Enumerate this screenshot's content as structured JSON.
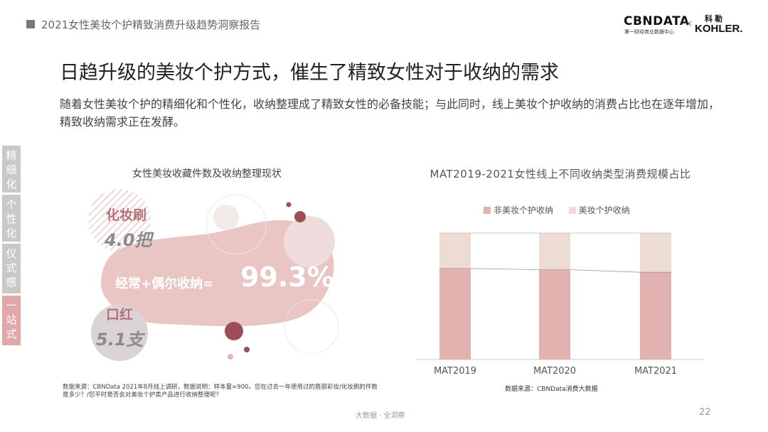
{
  "header": {
    "report_title": "2021女性美妆个护精致消费升级趋势洞察报告"
  },
  "logos": {
    "cbn": "CBNDATA",
    "cbn_sub": "第一财经商业数据中心",
    "times": "×",
    "kohler_cn": "科勒",
    "kohler": "KOHLER."
  },
  "main": {
    "title": "日趋升级的美妆个护方式，催生了精致女性对于收纳的需求",
    "description": "随着女性美妆个护的精细化和个性化，收纳整理成了精致女性的必备技能；与此同时，线上美妆个护收纳的消费占比也在逐年增加，精致收纳需求正在发酵。"
  },
  "side_tabs": [
    {
      "label": "精细化",
      "active": false
    },
    {
      "label": "个性化",
      "active": false
    },
    {
      "label": "仪式感",
      "active": false
    },
    {
      "label": "一站式",
      "active": true
    }
  ],
  "left_panel": {
    "title": "女性美妆收藏件数及收纳整理现状",
    "brush_label": "化妆刷",
    "brush_value": "4.0把",
    "lipstick_label": "口红",
    "lipstick_value": "5.1支",
    "storage_label": "经常+偶尔收纳=",
    "storage_value": "99.3%",
    "source": "数据来源：CBNData 2021年8月线上调研，数据说明：样本量=900。您在过去一年使用过的唇部彩妆/化妆刷的件数是多少？/您平时是否会对美妆个护类产品进行收纳整理呢？"
  },
  "chart_data": {
    "type": "bar",
    "stacked": true,
    "title": "MAT2019-2021女性线上不同收纳类型消费规模占比",
    "categories": [
      "MAT2019",
      "MAT2020",
      "MAT2021"
    ],
    "series": [
      {
        "name": "非美妆个护收纳",
        "values": [
          72,
          71,
          69
        ],
        "color": "#e2b2b0"
      },
      {
        "name": "美妆个护收纳",
        "values": [
          28,
          29,
          31
        ],
        "color": "#ecdcd1"
      }
    ],
    "ylim": [
      0,
      100
    ],
    "grid": false,
    "legend": "top",
    "source": "数据来源：CBNData消费大数据"
  },
  "footer": {
    "text": "大数据 · 全洞察",
    "page": "22"
  }
}
